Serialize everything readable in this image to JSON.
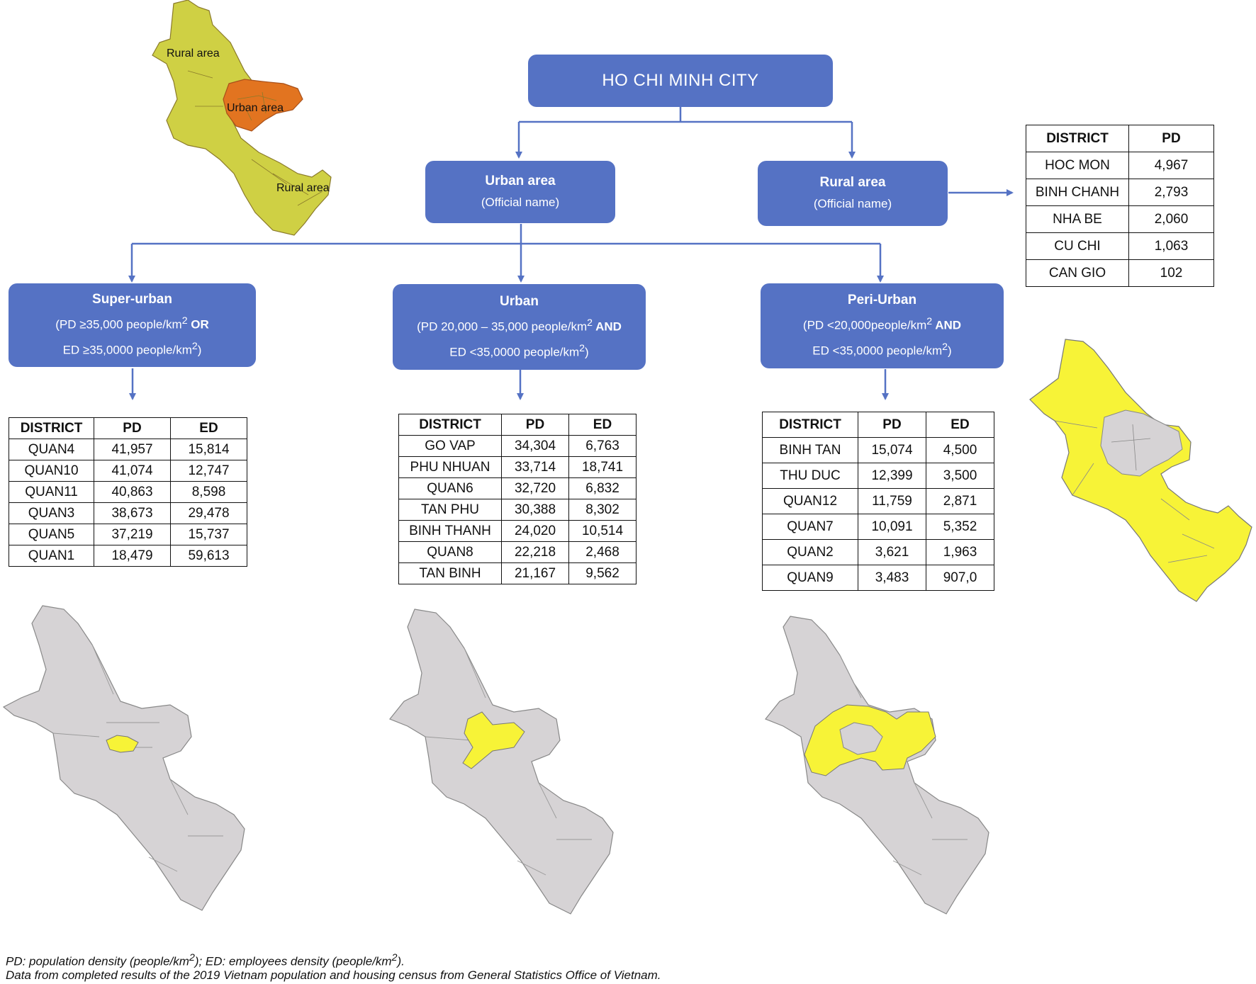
{
  "colors": {
    "node_fill": "#5572c4",
    "map_gray": "#d6d3d5",
    "map_yellow": "#f7f337",
    "map_olive": "#cfd044",
    "map_orange": "#e27420"
  },
  "root": {
    "title": "HO CHI MINH CITY"
  },
  "urban_area": {
    "title": "Urban area",
    "subtitle": "(Official name)"
  },
  "rural_area": {
    "title": "Rural area",
    "subtitle": "(Official name)"
  },
  "super_urban": {
    "title": "Super-urban",
    "line1_a": "(PD ≥35,000 people/km",
    "line1_sup": "2",
    "line1_b": " OR",
    "line2_a": "ED ≥35,0000 people/km",
    "line2_sup": "2",
    "line2_b": ")"
  },
  "urban": {
    "title": "Urban",
    "line1_a": "(PD 20,000 – 35,000 people/km",
    "line1_sup": "2",
    "line1_b": " AND",
    "line2_a": "ED <35,0000 people/km",
    "line2_sup": "2",
    "line2_b": ")"
  },
  "peri_urban": {
    "title": "Peri-Urban",
    "line1_a": "(PD <20,000people/km",
    "line1_sup": "2",
    "line1_b": " AND",
    "line2_a": "ED <35,0000 people/km",
    "line2_sup": "2",
    "line2_b": ")"
  },
  "rural_table": {
    "headers": [
      "DISTRICT",
      "PD"
    ],
    "rows": [
      [
        "HOC MON",
        "4,967"
      ],
      [
        "BINH CHANH",
        "2,793"
      ],
      [
        "NHA BE",
        "2,060"
      ],
      [
        "CU CHI",
        "1,063"
      ],
      [
        "CAN GIO",
        "102"
      ]
    ]
  },
  "super_urban_table": {
    "headers": [
      "DISTRICT",
      "PD",
      "ED"
    ],
    "rows": [
      [
        "QUAN4",
        "41,957",
        "15,814"
      ],
      [
        "QUAN10",
        "41,074",
        "12,747"
      ],
      [
        "QUAN11",
        "40,863",
        "8,598"
      ],
      [
        "QUAN3",
        "38,673",
        "29,478"
      ],
      [
        "QUAN5",
        "37,219",
        "15,737"
      ],
      [
        "QUAN1",
        "18,479",
        "59,613"
      ]
    ]
  },
  "urban_table": {
    "headers": [
      "DISTRICT",
      "PD",
      "ED"
    ],
    "rows": [
      [
        "GO VAP",
        "34,304",
        "6,763"
      ],
      [
        "PHU NHUAN",
        "33,714",
        "18,741"
      ],
      [
        "QUAN6",
        "32,720",
        "6,832"
      ],
      [
        "TAN PHU",
        "30,388",
        "8,302"
      ],
      [
        "BINH THANH",
        "24,020",
        "10,514"
      ],
      [
        "QUAN8",
        "22,218",
        "2,468"
      ],
      [
        "TAN BINH",
        "21,167",
        "9,562"
      ]
    ]
  },
  "peri_urban_table": {
    "headers": [
      "DISTRICT",
      "PD",
      "ED"
    ],
    "rows": [
      [
        "BINH TAN",
        "15,074",
        "4,500"
      ],
      [
        "THU DUC",
        "12,399",
        "3,500"
      ],
      [
        "QUAN12",
        "11,759",
        "2,871"
      ],
      [
        "QUAN7",
        "10,091",
        "5,352"
      ],
      [
        "QUAN2",
        "3,621",
        "1,963"
      ],
      [
        "QUAN9",
        "3,483",
        "907,0"
      ]
    ]
  },
  "top_map": {
    "label_rural_north": "Rural area",
    "label_urban": "Urban area",
    "label_rural_south": "Rural area"
  },
  "footer": {
    "line1_a": "PD: population density (people/km",
    "line1_sup1": "2",
    "line1_b": "); ED: employees density (people/km",
    "line1_sup2": "2",
    "line1_c": ").",
    "line2": "Data from completed results of the 2019 Vietnam population and housing census from General Statistics Office of Vietnam."
  }
}
